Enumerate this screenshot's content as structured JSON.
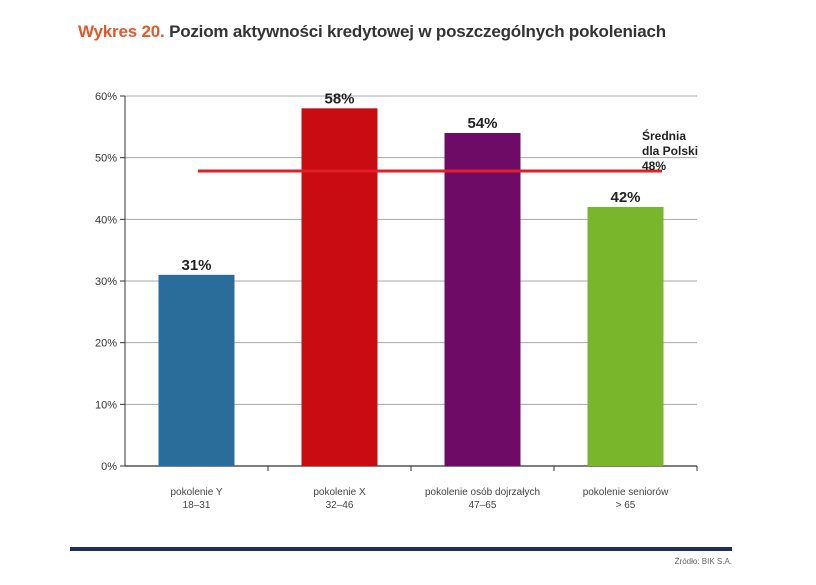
{
  "title_lead": "Wykres 20.",
  "title_rest": "Poziom aktywności kredytowej w poszczególnych pokoleniach",
  "source": "Źródło: BIK S.A.",
  "chart_data": {
    "type": "bar",
    "categories": [
      [
        "pokolenie Y",
        "18–31"
      ],
      [
        "pokolenie X",
        "32–46"
      ],
      [
        "pokolenie osób dojrzałych",
        "47–65"
      ],
      [
        "pokolenie seniorów",
        "> 65"
      ]
    ],
    "values": [
      31,
      58,
      54,
      42
    ],
    "value_labels": [
      "31%",
      "58%",
      "54%",
      "42%"
    ],
    "colors": [
      "#2a6d9a",
      "#c90c12",
      "#6e0b66",
      "#7ab62b"
    ],
    "yticks": [
      0,
      10,
      20,
      30,
      40,
      50,
      60
    ],
    "ytick_labels": [
      "0%",
      "10%",
      "20%",
      "30%",
      "40%",
      "50%",
      "60%"
    ],
    "ylim": [
      0,
      60
    ],
    "grid": true,
    "reference_line": {
      "value": 48,
      "label_lines": [
        "Średnia",
        "dla Polski",
        "48%"
      ],
      "color": "#e31e24"
    }
  }
}
